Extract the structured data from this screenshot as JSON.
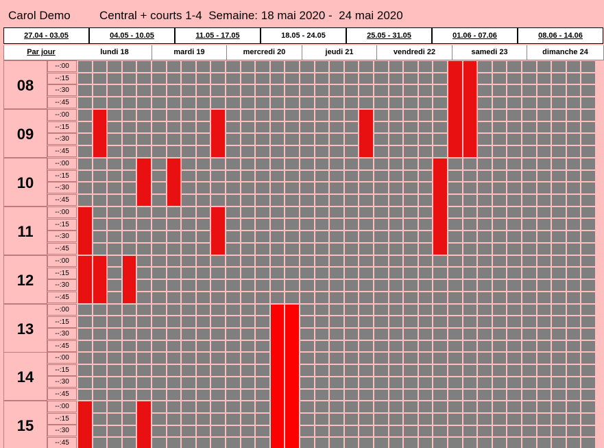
{
  "header": {
    "user": "Carol Demo",
    "title": "Central + courts 1-4  Semaine: 18 mai 2020 -  24 mai 2020"
  },
  "weeks": [
    {
      "label": "27.04 - 03.05",
      "link": true
    },
    {
      "label": "04.05 - 10.05",
      "link": true
    },
    {
      "label": "11.05 - 17.05",
      "link": true
    },
    {
      "label": "18.05 - 24.05",
      "link": false
    },
    {
      "label": "25.05 - 31.05",
      "link": true
    },
    {
      "label": "01.06 - 07.06",
      "link": true
    },
    {
      "label": "08.06 - 14.06",
      "link": true
    }
  ],
  "day_header": {
    "par_jour": "Par jour",
    "days": [
      "lundi 18",
      "mardi 19",
      "mercredi 20",
      "jeudi 21",
      "vendredi 22",
      "samedi 23",
      "dimanche 24"
    ]
  },
  "grid": {
    "hours": [
      "08",
      "09",
      "10",
      "11",
      "12",
      "13",
      "14",
      "15"
    ],
    "minutes": [
      "--:00",
      "--:15",
      "--:30",
      "--:45"
    ],
    "courts_per_day": 5,
    "booking_colors": {
      "free": "#7f7f7f",
      "booked": "#e81010",
      "booked_bright": "#ff0000"
    },
    "bookings": [
      {
        "column": 25,
        "from_slot": 0,
        "to_slot": 7
      },
      {
        "column": 26,
        "from_slot": 0,
        "to_slot": 7
      },
      {
        "column": 1,
        "from_slot": 4,
        "to_slot": 7
      },
      {
        "column": 9,
        "from_slot": 4,
        "to_slot": 7
      },
      {
        "column": 19,
        "from_slot": 4,
        "to_slot": 7
      },
      {
        "column": 4,
        "from_slot": 8,
        "to_slot": 11
      },
      {
        "column": 6,
        "from_slot": 8,
        "to_slot": 11
      },
      {
        "column": 24,
        "from_slot": 8,
        "to_slot": 15
      },
      {
        "column": 0,
        "from_slot": 12,
        "to_slot": 15
      },
      {
        "column": 9,
        "from_slot": 12,
        "to_slot": 15
      },
      {
        "column": 0,
        "from_slot": 16,
        "to_slot": 19
      },
      {
        "column": 1,
        "from_slot": 16,
        "to_slot": 19
      },
      {
        "column": 3,
        "from_slot": 16,
        "to_slot": 19
      },
      {
        "column": 13,
        "from_slot": 20,
        "to_slot": 31,
        "bright": true
      },
      {
        "column": 14,
        "from_slot": 20,
        "to_slot": 31,
        "bright": true
      },
      {
        "column": 0,
        "from_slot": 28,
        "to_slot": 31
      },
      {
        "column": 4,
        "from_slot": 28,
        "to_slot": 31
      }
    ]
  }
}
